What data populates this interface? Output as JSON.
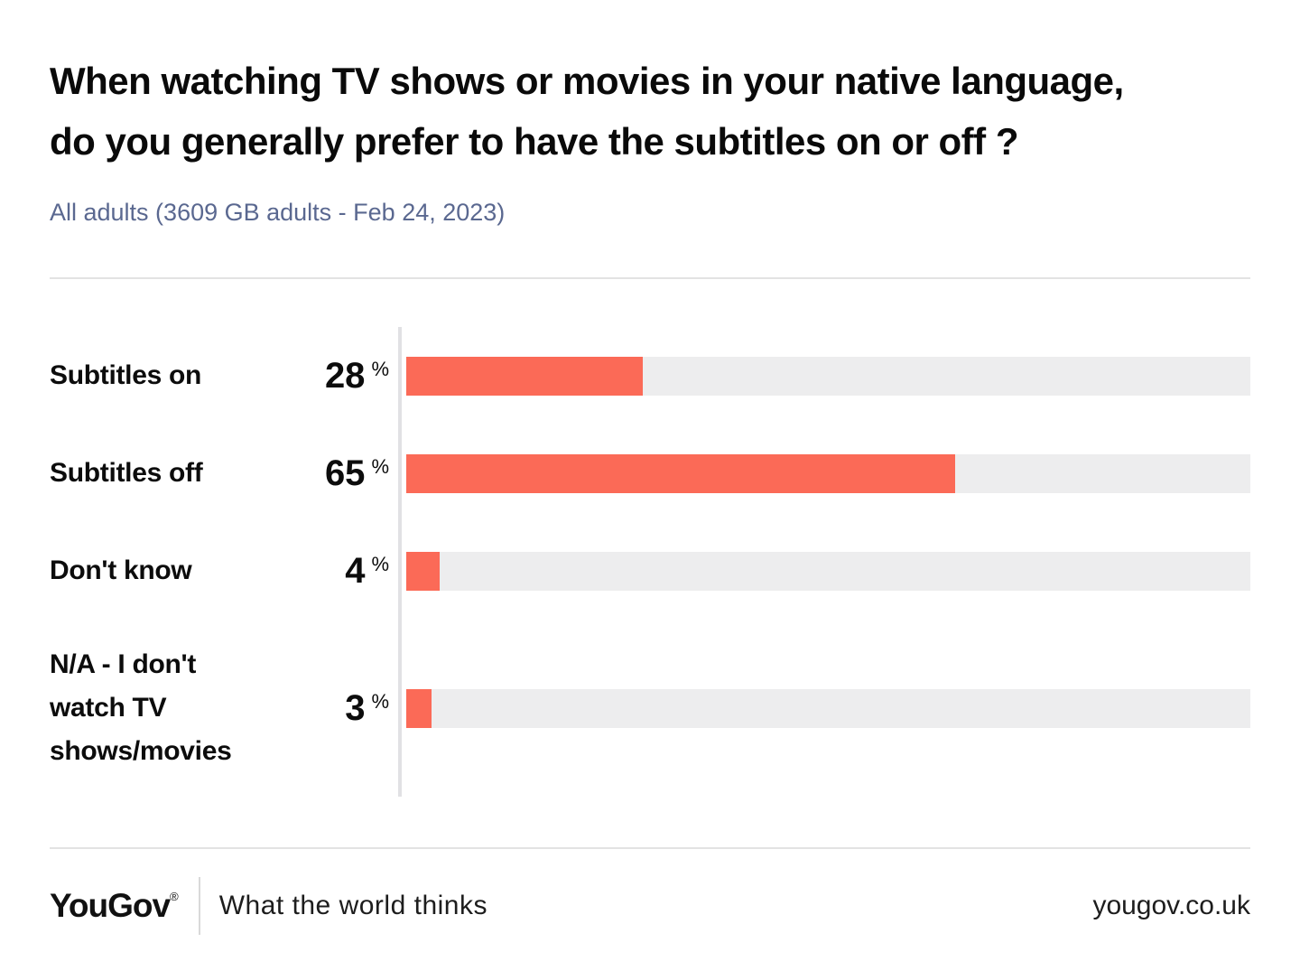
{
  "header": {
    "title_line1": "When watching TV shows or movies in your native language,",
    "title_line2": "do you generally prefer to have the subtitles on or off ?",
    "subtitle": "All adults (3609 GB adults - Feb 24, 2023)"
  },
  "chart_data": {
    "type": "bar",
    "orientation": "horizontal",
    "title": "When watching TV shows or movies in your native language, do you generally prefer to have the subtitles on or off?",
    "subtitle": "All adults (3609 GB adults - Feb 24, 2023)",
    "categories": [
      "Subtitles on",
      "Subtitles off",
      "Don't know",
      "N/A - I don't watch TV shows/movies"
    ],
    "values": [
      28,
      65,
      4,
      3
    ],
    "unit": "%",
    "xlim": [
      0,
      100
    ],
    "grid": false,
    "legend": false,
    "colors": {
      "bar": "#fb6a57",
      "track": "#ededee",
      "axis": "#e1e1e4",
      "subtitle_text": "#5a6890"
    }
  },
  "footer": {
    "logo": "YouGov",
    "registered": "®",
    "tagline": "What the world thinks",
    "website": "yougov.co.uk"
  }
}
